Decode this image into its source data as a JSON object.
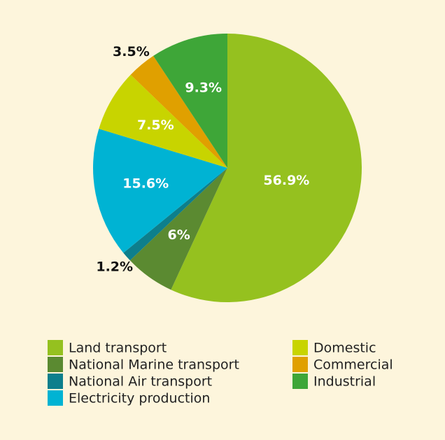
{
  "chart_data": {
    "type": "pie",
    "categories": [
      "Land transport",
      "National Marine transport",
      "National Air transport",
      "Electricity production",
      "Domestic",
      "Commercial",
      "Industrial"
    ],
    "values": [
      56.9,
      6,
      1.2,
      15.6,
      7.5,
      3.5,
      9.3
    ],
    "value_labels": [
      "56.9%",
      "6%",
      "1.2%",
      "15.6%",
      "7.5%",
      "3.5%",
      "9.3%"
    ],
    "colors": [
      "#95c11f",
      "#5b8a31",
      "#0d7f8c",
      "#00b3d3",
      "#c8d400",
      "#e0a000",
      "#3ea638"
    ]
  }
}
